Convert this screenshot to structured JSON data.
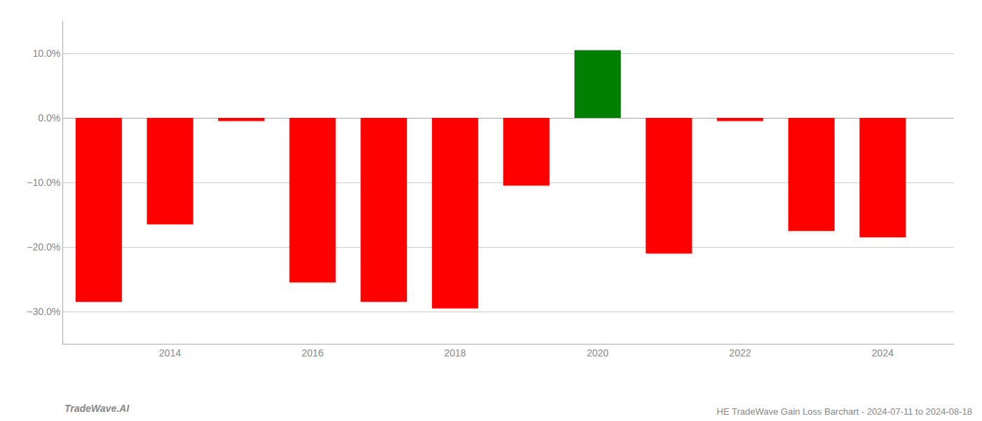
{
  "chart_data": {
    "type": "bar",
    "title": "HE TradeWave Gain Loss Barchart - 2024-07-11 to 2024-08-18",
    "annotations": [
      "TradeWave.AI"
    ],
    "x": [
      2013,
      2014,
      2015,
      2016,
      2017,
      2018,
      2019,
      2020,
      2021,
      2022,
      2023,
      2024
    ],
    "values": [
      -0.285,
      -0.165,
      -0.005,
      -0.255,
      -0.285,
      -0.295,
      -0.105,
      0.105,
      -0.21,
      -0.005,
      -0.175,
      -0.185
    ],
    "colors": [
      "#ff0000",
      "#ff0000",
      "#ff0000",
      "#ff0000",
      "#ff0000",
      "#ff0000",
      "#ff0000",
      "#008000",
      "#ff0000",
      "#ff0000",
      "#ff0000",
      "#ff0000"
    ],
    "xlim": [
      2012.5,
      2025.0
    ],
    "xticks": [
      2014,
      2016,
      2018,
      2020,
      2022,
      2024
    ],
    "ylim": [
      -0.35,
      0.15
    ],
    "yticks": [
      {
        "value": -0.3,
        "label": "−30.0%"
      },
      {
        "value": -0.2,
        "label": "−20.0%"
      },
      {
        "value": -0.1,
        "label": "−10.0%"
      },
      {
        "value": 0.0,
        "label": "0.0%"
      },
      {
        "value": 0.1,
        "label": "10.0%"
      }
    ],
    "grid": "y"
  }
}
